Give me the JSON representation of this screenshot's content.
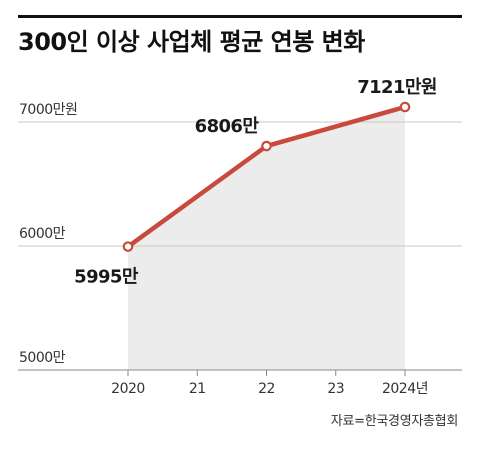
{
  "title": "300인 이상 사업체 평균 연봉 변화",
  "source": "자료=한국경영자총협회",
  "colors": {
    "line": "#c94a3d",
    "area": "#ececec",
    "grid": "#c8c8c8",
    "text": "#1a1a1a"
  },
  "chart_data": {
    "type": "area",
    "title": "300인 이상 사업체 평균 연봉 변화",
    "xlabel": "",
    "ylabel": "",
    "categories": [
      "2020",
      "21",
      "22",
      "23",
      "2024년"
    ],
    "x": [
      2020,
      2021,
      2022,
      2023,
      2024
    ],
    "series": [
      {
        "values": [
          5995,
          null,
          6806,
          null,
          7121
        ]
      }
    ],
    "ylim": [
      5000,
      7300
    ],
    "yticks": [
      {
        "value": 7000,
        "label": "7000만원"
      },
      {
        "value": 6000,
        "label": "6000만"
      },
      {
        "value": 5000,
        "label": "5000만"
      }
    ],
    "data_labels": [
      {
        "x": 2020,
        "label": "5995만"
      },
      {
        "x": 2022,
        "label": "6806만"
      },
      {
        "x": 2024,
        "label": "7121만원"
      }
    ],
    "grid": true,
    "legend": "none"
  }
}
